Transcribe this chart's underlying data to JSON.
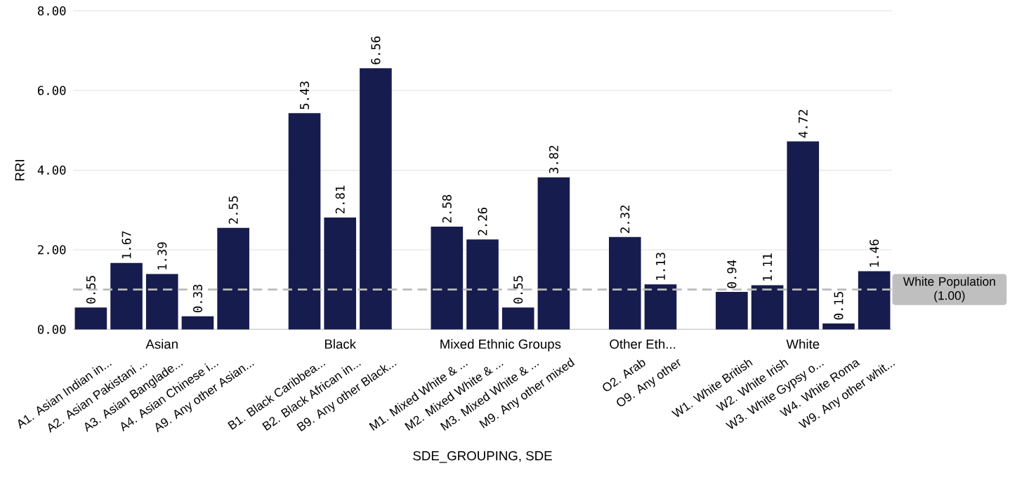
{
  "chart_data": {
    "type": "bar",
    "xlabel": "SDE_GROUPING, SDE",
    "ylabel": "RRI",
    "categories": [
      "A1. Asian Indian in...",
      "A2. Asian Pakistani ...",
      "A3. Asian Banglade...",
      "A4. Asian Chinese i...",
      "A9. Any other Asian...",
      null,
      "B1. Black Caribbea...",
      "B2. Black African in...",
      "B9. Any other Black...",
      null,
      "M1. Mixed White & ...",
      "M2. Mixed White & ...",
      "M3. Mixed White & ...",
      "M9. Any other mixed",
      null,
      "O2. Arab",
      "O9. Any other",
      null,
      "W1. White British",
      "W2. White Irish",
      "W3. White Gypsy o...",
      "W4. White Roma",
      "W9. Any other whit..."
    ],
    "values": [
      0.55,
      1.67,
      1.39,
      0.33,
      2.55,
      null,
      5.43,
      2.81,
      6.56,
      null,
      2.58,
      2.26,
      0.55,
      3.82,
      null,
      2.32,
      1.13,
      null,
      0.94,
      1.11,
      4.72,
      0.15,
      1.46
    ],
    "color": "#161c4e",
    "ylim": [
      0,
      8
    ],
    "yticks": [
      {
        "value": 0,
        "label": "0.00"
      },
      {
        "value": 2,
        "label": "2.00"
      },
      {
        "value": 4,
        "label": "4.00"
      },
      {
        "value": 6,
        "label": "6.00"
      },
      {
        "value": 8,
        "label": "8.00"
      }
    ],
    "grid": "y",
    "data_labels": true,
    "ref_lines": [
      {
        "axis": "y",
        "value": 1,
        "label": "White Population (1.00)",
        "color": "#bbbbbb",
        "line_style": "dashed"
      }
    ],
    "annotations": [
      "Asian",
      "Black",
      "Mixed Ethnic Groups",
      "Other Eth...",
      "White"
    ]
  }
}
